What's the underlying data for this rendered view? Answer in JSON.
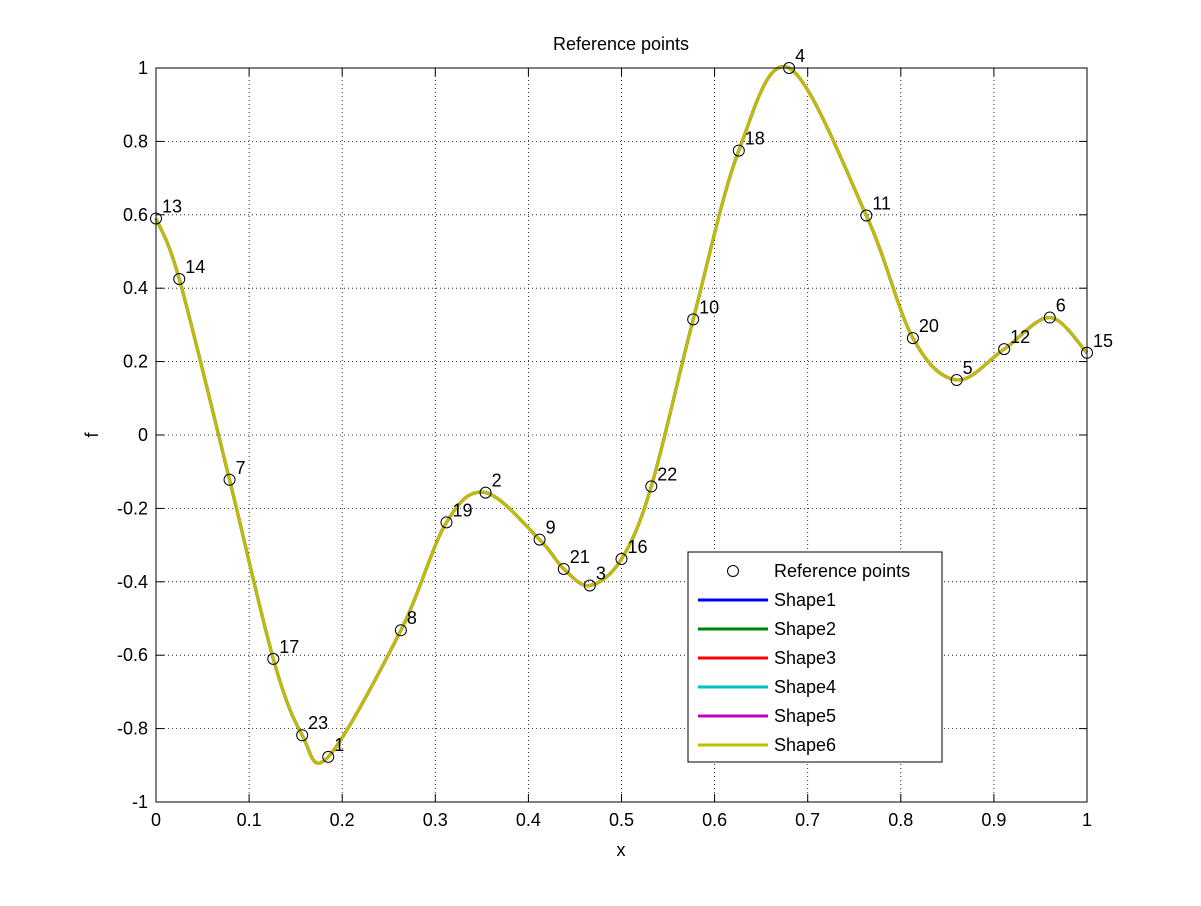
{
  "chart_data": {
    "type": "line",
    "title": "Reference points",
    "xlabel": "x",
    "ylabel": "f",
    "xlim": [
      0,
      1
    ],
    "ylim": [
      -1,
      1
    ],
    "x_ticks": [
      0,
      0.1,
      0.2,
      0.3,
      0.4,
      0.5,
      0.6,
      0.7,
      0.8,
      0.9,
      1
    ],
    "x_tick_labels": [
      "0",
      "0.1",
      "0.2",
      "0.3",
      "0.4",
      "0.5",
      "0.6",
      "0.7",
      "0.8",
      "0.9",
      "1"
    ],
    "y_ticks": [
      -1,
      -0.8,
      -0.6,
      -0.4,
      -0.2,
      0,
      0.2,
      0.4,
      0.6,
      0.8,
      1
    ],
    "y_tick_labels": [
      "-1",
      "-0.8",
      "-0.6",
      "-0.4",
      "-0.2",
      "0",
      "0.2",
      "0.4",
      "0.6",
      "0.8",
      "1"
    ],
    "grid": true,
    "grid_style": "dotted",
    "legend_position": "lower-right",
    "reference_points": {
      "name": "Reference points",
      "marker": "open-circle",
      "color": "#000000",
      "points": [
        {
          "label": "13",
          "x": 0.0,
          "y": 0.59
        },
        {
          "label": "14",
          "x": 0.025,
          "y": 0.425
        },
        {
          "label": "7",
          "x": 0.079,
          "y": -0.122
        },
        {
          "label": "17",
          "x": 0.126,
          "y": -0.61
        },
        {
          "label": "23",
          "x": 0.157,
          "y": -0.818
        },
        {
          "label": "1",
          "x": 0.185,
          "y": -0.877
        },
        {
          "label": "8",
          "x": 0.263,
          "y": -0.532
        },
        {
          "label": "19",
          "x": 0.312,
          "y": -0.238
        },
        {
          "label": "2",
          "x": 0.354,
          "y": -0.157
        },
        {
          "label": "9",
          "x": 0.412,
          "y": -0.285
        },
        {
          "label": "21",
          "x": 0.438,
          "y": -0.365
        },
        {
          "label": "3",
          "x": 0.466,
          "y": -0.41
        },
        {
          "label": "16",
          "x": 0.5,
          "y": -0.338
        },
        {
          "label": "22",
          "x": 0.532,
          "y": -0.14
        },
        {
          "label": "10",
          "x": 0.577,
          "y": 0.315
        },
        {
          "label": "18",
          "x": 0.626,
          "y": 0.775
        },
        {
          "label": "4",
          "x": 0.68,
          "y": 1.0
        },
        {
          "label": "11",
          "x": 0.763,
          "y": 0.598
        },
        {
          "label": "20",
          "x": 0.813,
          "y": 0.264
        },
        {
          "label": "5",
          "x": 0.86,
          "y": 0.15
        },
        {
          "label": "12",
          "x": 0.911,
          "y": 0.234
        },
        {
          "label": "6",
          "x": 0.96,
          "y": 0.32
        },
        {
          "label": "15",
          "x": 1.0,
          "y": 0.224
        }
      ]
    },
    "series": [
      {
        "name": "Shape1",
        "color": "#0000ff"
      },
      {
        "name": "Shape2",
        "color": "#008000"
      },
      {
        "name": "Shape3",
        "color": "#ff0000"
      },
      {
        "name": "Shape4",
        "color": "#00bfbf"
      },
      {
        "name": "Shape5",
        "color": "#bf00bf"
      },
      {
        "name": "Shape6",
        "color": "#bfbf00"
      }
    ],
    "visible_curve": "Shape6"
  }
}
